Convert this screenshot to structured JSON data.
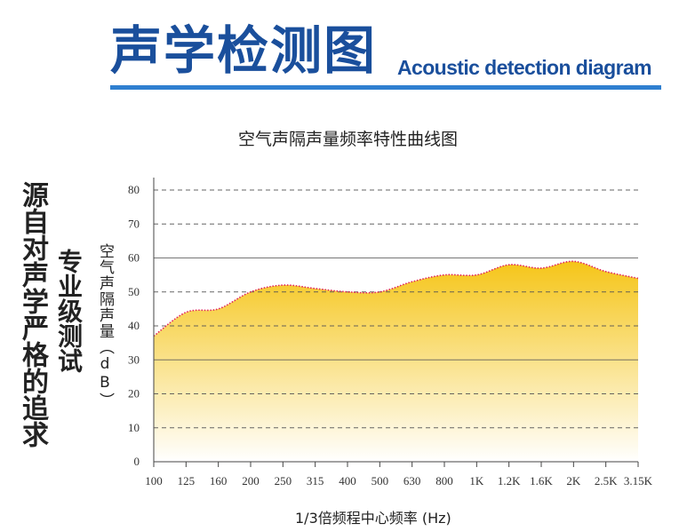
{
  "header": {
    "title": "声学检测图",
    "subtitle": "Acoustic detection diagram"
  },
  "side_text": {
    "column1": "源自对声学严格的追求",
    "column2": "专业级测试"
  },
  "colors": {
    "brand_blue": "#1a4f9c",
    "rule_blue": "#2f7fd0",
    "fill_top": "#f5c518",
    "fill_bottom": "#ffffff",
    "curve": "#e0245e",
    "grid": "#555555"
  },
  "chart_data": {
    "type": "area",
    "title": "空气声隔声量频率特性曲线图",
    "xlabel": "1/3倍频程中心频率 (Hz)",
    "ylabel": "空气声隔声量（dB）",
    "categories": [
      "100",
      "125",
      "160",
      "200",
      "250",
      "315",
      "400",
      "500",
      "630",
      "800",
      "1K",
      "1.2K",
      "1.6K",
      "2K",
      "2.5K",
      "3.15K"
    ],
    "yticks": [
      "0",
      "10",
      "20",
      "30",
      "40",
      "50",
      "60",
      "70",
      "80"
    ],
    "ylim": [
      0,
      80
    ],
    "grid": true,
    "series": [
      {
        "values": [
          37,
          44,
          45,
          50,
          52,
          51,
          50,
          50,
          53,
          55,
          55,
          58,
          57,
          59,
          56,
          54
        ]
      }
    ]
  }
}
